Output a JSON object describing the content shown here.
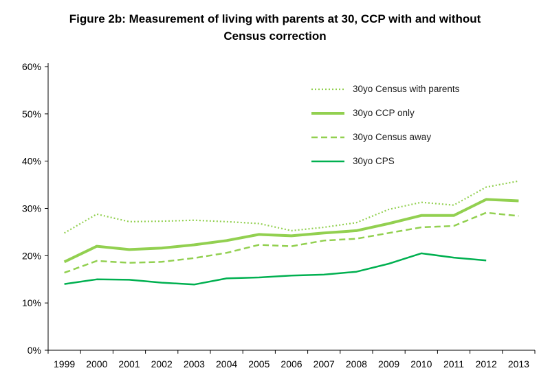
{
  "title": "Figure 2b: Measurement of living with parents at 30, CCP with and without Census correction",
  "chart_data": {
    "type": "line",
    "x": [
      1999,
      2000,
      2001,
      2002,
      2003,
      2004,
      2005,
      2006,
      2007,
      2008,
      2009,
      2010,
      2011,
      2012,
      2013
    ],
    "x_tick_labels": [
      "1999",
      "2000",
      "2001",
      "2002",
      "2003",
      "2004",
      "2005",
      "2006",
      "2007",
      "2008",
      "2009",
      "2010",
      "2011",
      "2012",
      "2013"
    ],
    "y_tick_labels": [
      "0%",
      "10%",
      "20%",
      "30%",
      "40%",
      "50%",
      "60%"
    ],
    "ylim": [
      0,
      60
    ],
    "ytick_step": 10,
    "grid": false,
    "legend_position": "inside-upper-right",
    "series": [
      {
        "name": "30yo Census with parents",
        "color": "#92d050",
        "line_style": "dotted",
        "line_width": 2.2,
        "values": [
          24.8,
          28.8,
          27.2,
          27.3,
          27.5,
          27.2,
          26.8,
          25.3,
          26.0,
          27.0,
          29.8,
          31.3,
          30.7,
          34.5,
          35.8
        ]
      },
      {
        "name": "30yo CCP only",
        "color": "#92d050",
        "line_style": "solid",
        "line_width": 4,
        "values": [
          18.7,
          22.0,
          21.3,
          21.6,
          22.3,
          23.2,
          24.5,
          24.2,
          24.8,
          25.3,
          26.8,
          28.5,
          28.5,
          31.9,
          31.6
        ]
      },
      {
        "name": "30yo Census away",
        "color": "#92d050",
        "line_style": "dashed",
        "line_width": 2.5,
        "values": [
          16.4,
          18.9,
          18.5,
          18.7,
          19.5,
          20.6,
          22.3,
          22.0,
          23.2,
          23.6,
          24.8,
          26.0,
          26.3,
          29.1,
          28.4
        ]
      },
      {
        "name": "30yo CPS",
        "color": "#00b050",
        "line_style": "solid",
        "line_width": 2.5,
        "values": [
          14.0,
          15.0,
          14.9,
          14.3,
          13.9,
          15.2,
          15.4,
          15.8,
          16.0,
          16.6,
          18.3,
          20.5,
          19.6,
          19.0,
          null
        ]
      }
    ]
  }
}
